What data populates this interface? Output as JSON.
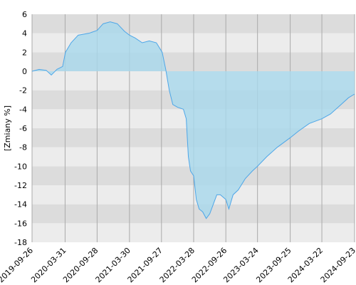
{
  "chart_data": {
    "type": "area",
    "y_label": "[Zmiany %]",
    "x": [
      "2019-09-26",
      "2019-11-05",
      "2019-12-15",
      "2020-01-13",
      "2020-02-14",
      "2020-03-17",
      "2020-04-02",
      "2020-05-04",
      "2020-06-13",
      "2020-08-13",
      "2020-09-28",
      "2020-11-01",
      "2020-12-11",
      "2021-01-20",
      "2021-03-02",
      "2021-03-30",
      "2021-05-01",
      "2021-06-10",
      "2021-07-20",
      "2021-08-29",
      "2021-10-01",
      "2021-10-21",
      "2021-11-10",
      "2021-11-30",
      "2021-12-28",
      "2022-01-29",
      "2022-02-14",
      "2022-02-26",
      "2022-03-10",
      "2022-03-28",
      "2022-04-12",
      "2022-04-28",
      "2022-05-18",
      "2022-06-07",
      "2022-06-27",
      "2022-07-17",
      "2022-08-06",
      "2022-08-26",
      "2022-09-26",
      "2022-10-13",
      "2022-11-06",
      "2022-12-05",
      "2023-01-14",
      "2023-02-23",
      "2023-03-24",
      "2023-05-15",
      "2023-07-14",
      "2023-09-25",
      "2023-11-11",
      "2024-01-11",
      "2024-03-22",
      "2024-05-10",
      "2024-07-09",
      "2024-08-19",
      "2024-09-23"
    ],
    "series": [
      {
        "color": "#4da6e8",
        "fill": "#a8d8ec",
        "values": [
          0,
          0.2,
          0.1,
          -0.4,
          0.2,
          0.5,
          2.0,
          3.0,
          3.8,
          4.0,
          4.3,
          5.0,
          5.2,
          5.0,
          4.2,
          3.8,
          3.5,
          3.0,
          3.2,
          3.0,
          2.0,
          0.2,
          -2.0,
          -3.5,
          -3.8,
          -4.0,
          -5.0,
          -9.0,
          -10.5,
          -11.0,
          -13.5,
          -14.5,
          -14.8,
          -15.5,
          -15.0,
          -14.0,
          -13.0,
          -13.0,
          -13.5,
          -14.5,
          -13.0,
          -12.5,
          -11.3,
          -10.5,
          -10.0,
          -9.0,
          -8.0,
          -7.0,
          -6.3,
          -5.5,
          -5.0,
          -4.5,
          -3.5,
          -2.8,
          -2.4
        ]
      }
    ],
    "xlim": [
      "2019-09-26",
      "2024-09-23"
    ],
    "xticks": [
      "2019-09-26",
      "2020-03-31",
      "2020-09-28",
      "2021-03-30",
      "2021-09-27",
      "2022-03-28",
      "2022-09-26",
      "2023-03-24",
      "2023-09-25",
      "2024-03-22",
      "2024-09-23"
    ],
    "ylim": [
      -18,
      6
    ],
    "yticks": [
      -18,
      -16,
      -14,
      -12,
      -10,
      -8,
      -6,
      -4,
      -2,
      0,
      2,
      4,
      6
    ],
    "grid": true
  }
}
